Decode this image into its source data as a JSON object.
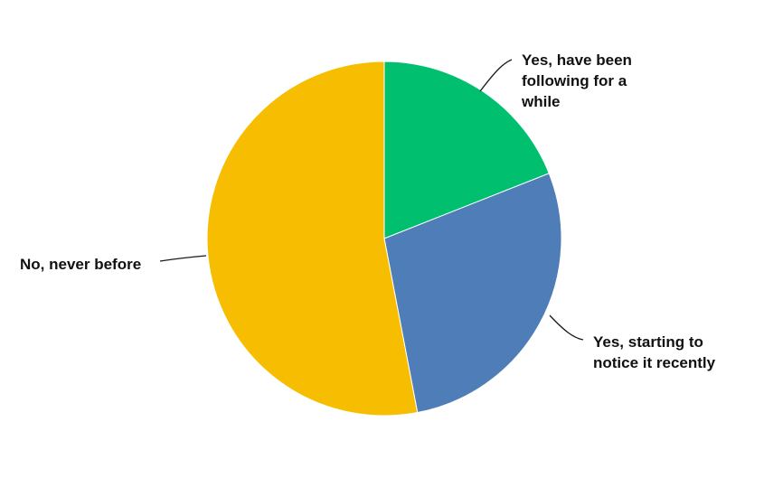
{
  "chart_data": {
    "type": "pie",
    "title": "",
    "legend": "none",
    "start": "12 o'clock, clockwise",
    "slices": [
      {
        "label": "Yes, have been following for a while",
        "label_lines": [
          "Yes, have been",
          "following for a",
          "while"
        ],
        "value": 19,
        "color": "#00C06F"
      },
      {
        "label": "Yes, starting to notice it recently",
        "label_lines": [
          "Yes, starting to",
          "notice it recently"
        ],
        "value": 28,
        "color": "#4E7DB8"
      },
      {
        "label": "No, never before",
        "label_lines": [
          "No, never before"
        ],
        "value": 53,
        "color": "#F7BD00"
      }
    ]
  }
}
